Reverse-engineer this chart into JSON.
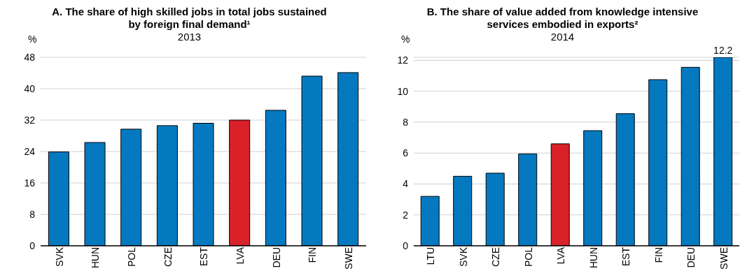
{
  "chart_data": [
    {
      "type": "bar",
      "title": "A. The share of high skilled jobs in total jobs sustained by foreign final demand¹",
      "subtitle": "2013",
      "ylabel": "%",
      "categories": [
        "SVK",
        "HUN",
        "POL",
        "CZE",
        "EST",
        "LVA",
        "DEU",
        "FIN",
        "SWE"
      ],
      "values": [
        23.9,
        26.3,
        29.7,
        30.6,
        31.2,
        32.0,
        34.5,
        43.2,
        44.1
      ],
      "colors": [
        "#0579c0",
        "#0579c0",
        "#0579c0",
        "#0579c0",
        "#0579c0",
        "#da2128",
        "#0579c0",
        "#0579c0",
        "#0579c0"
      ],
      "ylim": [
        0,
        48
      ],
      "yticks": [
        0,
        8,
        16,
        24,
        32,
        40,
        48
      ],
      "grid": "y",
      "legend": false
    },
    {
      "type": "bar",
      "title": "B. The share of value added from knowledge intensive services embodied in exports²",
      "subtitle": "2014",
      "ylabel": "%",
      "categories": [
        "LTU",
        "SVK",
        "CZE",
        "POL",
        "LVA",
        "HUN",
        "EST",
        "FIN",
        "DEU",
        "SWE"
      ],
      "values": [
        3.2,
        4.5,
        4.7,
        5.95,
        6.6,
        7.45,
        8.55,
        10.75,
        11.55,
        12.2
      ],
      "colors": [
        "#0579c0",
        "#0579c0",
        "#0579c0",
        "#0579c0",
        "#da2128",
        "#0579c0",
        "#0579c0",
        "#0579c0",
        "#0579c0",
        "#0579c0"
      ],
      "value_labels": [
        null,
        null,
        null,
        null,
        null,
        null,
        null,
        null,
        null,
        "12.2"
      ],
      "ylim": [
        0,
        12.2
      ],
      "yticks": [
        0,
        2,
        4,
        6,
        8,
        10,
        12
      ],
      "grid": "y",
      "legend": false
    }
  ]
}
